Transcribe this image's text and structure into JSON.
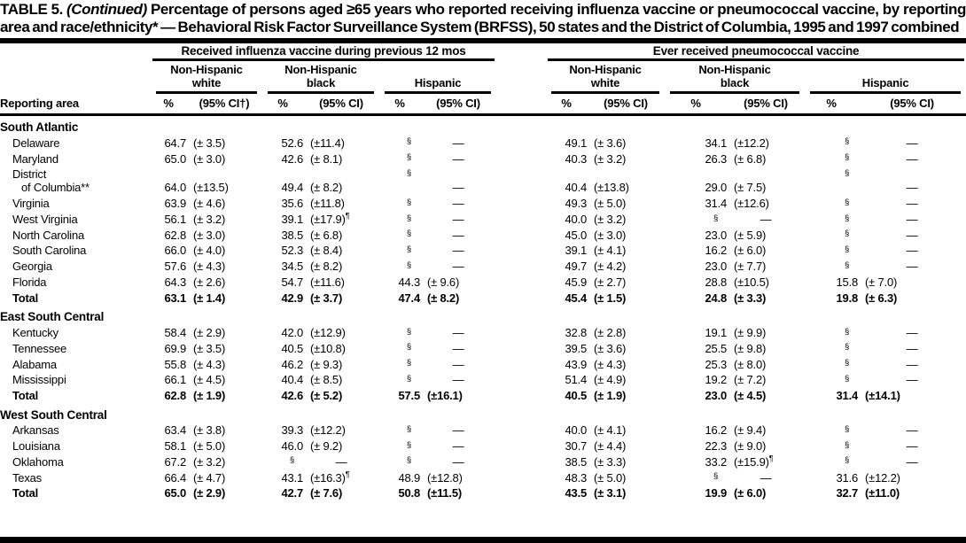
{
  "title": {
    "label": "TABLE 5.",
    "continued": "(Continued)",
    "text": "Percentage of persons aged ≥65 years who reported receiving influenza vaccine or pneumococcal vaccine, by reporting area and race/ethnicity* — Behavioral Risk Factor Surveillance System (BRFSS), 50 states and the District of Columbia, 1995 and 1997 combined"
  },
  "header": {
    "reporting_area": "Reporting area",
    "groups": [
      {
        "label": "Received influenza vaccine during previous 12 mos"
      },
      {
        "label": "Ever received pneumococcal vaccine"
      }
    ],
    "subgroups": [
      "Non-Hispanic\nwhite",
      "Non-Hispanic\nblack",
      "Hispanic",
      "Non-Hispanic\nwhite",
      "Non-Hispanic\nblack",
      "Hispanic"
    ],
    "measure_cols": [
      "%",
      "(95% CI†)",
      "%",
      "(95% CI)",
      "%",
      "(95% CI)",
      "%",
      "(95% CI)",
      "%",
      "(95% CI)",
      "%",
      "(95% CI)"
    ]
  },
  "table": {
    "sections": [
      {
        "name": "South Atlantic",
        "rows": [
          {
            "area": "Delaware",
            "bold": false,
            "cells": [
              "64.7",
              "(± 3.5)",
              "52.6",
              "(±11.4)",
              "§",
              "—",
              "49.1",
              "(± 3.6)",
              "34.1",
              "(±12.2)",
              "§",
              "—"
            ]
          },
          {
            "area": "Maryland",
            "bold": false,
            "cells": [
              "65.0",
              "(± 3.0)",
              "42.6",
              "(± 8.1)",
              "§",
              "—",
              "40.3",
              "(± 3.2)",
              "26.3",
              "(± 6.8)",
              "§",
              "—"
            ]
          },
          {
            "area": "District of Columbia**",
            "area_lines": [
              "District",
              "of Columbia**"
            ],
            "bold": false,
            "cells": [
              "64.0",
              "(±13.5)",
              "49.4",
              "(± 8.2)",
              "§",
              "—",
              "40.4",
              "(±13.8)",
              "29.0",
              "(± 7.5)",
              "§",
              "—"
            ]
          },
          {
            "area": "Virginia",
            "bold": false,
            "cells": [
              "63.9",
              "(± 4.6)",
              "35.6",
              "(±11.8)",
              "§",
              "—",
              "49.3",
              "(± 5.0)",
              "31.4",
              "(±12.6)",
              "§",
              "—"
            ]
          },
          {
            "area": "West Virginia",
            "bold": false,
            "cells": [
              "56.1",
              "(± 3.2)",
              "39.1",
              "(±17.9)¶",
              "§",
              "—",
              "40.0",
              "(± 3.2)",
              "§",
              "—",
              "§",
              "—"
            ]
          },
          {
            "area": "North Carolina",
            "bold": false,
            "cells": [
              "62.8",
              "(± 3.0)",
              "38.5",
              "(± 6.8)",
              "§",
              "—",
              "45.0",
              "(± 3.0)",
              "23.0",
              "(± 5.9)",
              "§",
              "—"
            ]
          },
          {
            "area": "South Carolina",
            "bold": false,
            "cells": [
              "66.0",
              "(± 4.0)",
              "52.3",
              "(± 8.4)",
              "§",
              "—",
              "39.1",
              "(± 4.1)",
              "16.2",
              "(± 6.0)",
              "§",
              "—"
            ]
          },
          {
            "area": "Georgia",
            "bold": false,
            "cells": [
              "57.6",
              "(± 4.3)",
              "34.5",
              "(± 8.2)",
              "§",
              "—",
              "49.7",
              "(± 4.2)",
              "23.0",
              "(± 7.7)",
              "§",
              "—"
            ]
          },
          {
            "area": "Florida",
            "bold": false,
            "cells": [
              "64.3",
              "(± 2.6)",
              "54.7",
              "(±11.6)",
              "44.3",
              "(± 9.6)",
              "45.9",
              "(± 2.7)",
              "28.8",
              "(±10.5)",
              "15.8",
              "(± 7.0)"
            ]
          },
          {
            "area": "Total",
            "bold": true,
            "cells": [
              "63.1",
              "(± 1.4)",
              "42.9",
              "(± 3.7)",
              "47.4",
              "(± 8.2)",
              "45.4",
              "(± 1.5)",
              "24.8",
              "(± 3.3)",
              "19.8",
              "(± 6.3)"
            ]
          }
        ]
      },
      {
        "name": "East South Central",
        "rows": [
          {
            "area": "Kentucky",
            "bold": false,
            "cells": [
              "58.4",
              "(± 2.9)",
              "42.0",
              "(±12.9)",
              "§",
              "—",
              "32.8",
              "(± 2.8)",
              "19.1",
              "(± 9.9)",
              "§",
              "—"
            ]
          },
          {
            "area": "Tennessee",
            "bold": false,
            "cells": [
              "69.9",
              "(± 3.5)",
              "40.5",
              "(±10.8)",
              "§",
              "—",
              "39.5",
              "(± 3.6)",
              "25.5",
              "(± 9.8)",
              "§",
              "—"
            ]
          },
          {
            "area": "Alabama",
            "bold": false,
            "cells": [
              "55.8",
              "(± 4.3)",
              "46.2",
              "(± 9.3)",
              "§",
              "—",
              "43.9",
              "(± 4.3)",
              "25.3",
              "(± 8.0)",
              "§",
              "—"
            ]
          },
          {
            "area": "Mississippi",
            "bold": false,
            "cells": [
              "66.1",
              "(± 4.5)",
              "40.4",
              "(± 8.5)",
              "§",
              "—",
              "51.4",
              "(± 4.9)",
              "19.2",
              "(± 7.2)",
              "§",
              "—"
            ]
          },
          {
            "area": "Total",
            "bold": true,
            "cells": [
              "62.8",
              "(± 1.9)",
              "42.6",
              "(± 5.2)",
              "57.5",
              "(±16.1)",
              "40.5",
              "(± 1.9)",
              "23.0",
              "(± 4.5)",
              "31.4",
              "(±14.1)"
            ]
          }
        ]
      },
      {
        "name": "West South Central",
        "rows": [
          {
            "area": "Arkansas",
            "bold": false,
            "cells": [
              "63.4",
              "(± 3.8)",
              "39.3",
              "(±12.2)",
              "§",
              "—",
              "40.0",
              "(± 4.1)",
              "16.2",
              "(± 9.4)",
              "§",
              "—"
            ]
          },
          {
            "area": "Louisiana",
            "bold": false,
            "cells": [
              "58.1",
              "(± 5.0)",
              "46.0",
              "(± 9.2)",
              "§",
              "—",
              "30.7",
              "(± 4.4)",
              "22.3",
              "(± 9.0)",
              "§",
              "—"
            ]
          },
          {
            "area": "Oklahoma",
            "bold": false,
            "cells": [
              "67.2",
              "(± 3.2)",
              "§",
              "—",
              "§",
              "—",
              "38.5",
              "(± 3.3)",
              "33.2",
              "(±15.9)¶",
              "§",
              "—"
            ]
          },
          {
            "area": "Texas",
            "bold": false,
            "cells": [
              "66.4",
              "(± 4.7)",
              "43.1",
              "(±16.3)¶",
              "48.9",
              "(±12.8)",
              "48.3",
              "(± 5.0)",
              "§",
              "—",
              "31.6",
              "(±12.2)"
            ]
          },
          {
            "area": "Total",
            "bold": true,
            "cells": [
              "65.0",
              "(± 2.9)",
              "42.7",
              "(± 7.6)",
              "50.8",
              "(±11.5)",
              "43.5",
              "(± 3.1)",
              "19.9",
              "(± 6.0)",
              "32.7",
              "(±11.0)"
            ]
          }
        ]
      }
    ]
  }
}
